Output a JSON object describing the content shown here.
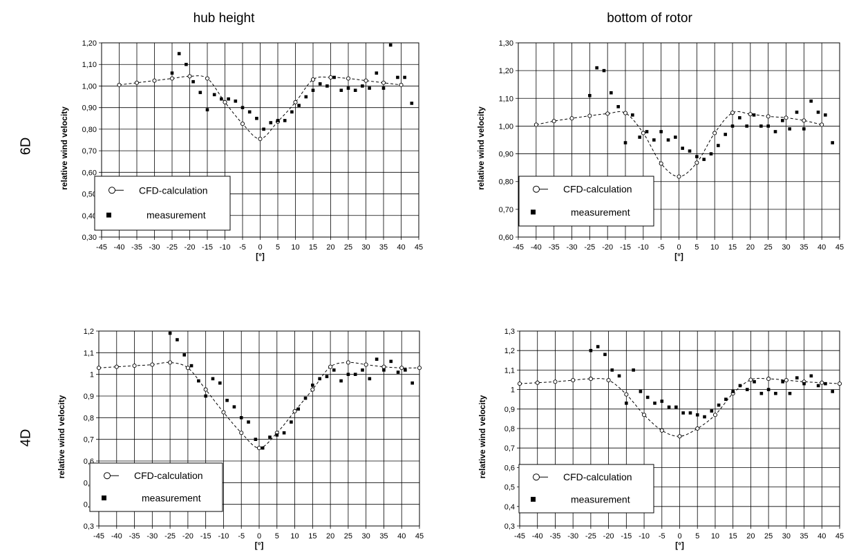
{
  "headers": {
    "col_left": "hub height",
    "col_right": "bottom of rotor",
    "row_top": "6D",
    "row_bottom": "4D"
  },
  "colors": {
    "line": "#000000",
    "grid": "#000000",
    "background": "#ffffff"
  },
  "chart_data": [
    {
      "type": "scatter",
      "xlabel": "[°]",
      "ylabel": "relative wind velocity",
      "xlim": [
        -45,
        45
      ],
      "ylim": [
        0.3,
        1.2
      ],
      "x_ticks": [
        -45,
        -40,
        -35,
        -30,
        -25,
        -20,
        -15,
        -10,
        -5,
        0,
        5,
        10,
        15,
        20,
        25,
        30,
        35,
        40,
        45
      ],
      "y_ticks": [
        "0,30",
        "0,40",
        "0,50",
        "0,60",
        "0,70",
        "0,80",
        "0,90",
        "1,00",
        "1,10",
        "1,20"
      ],
      "grid": true,
      "legend": "bottom-left",
      "series": [
        {
          "name": "CFD-calculation",
          "style": "line-open-circles",
          "x": [
            -40,
            -35,
            -30,
            -25,
            -20,
            -15,
            -10,
            -5,
            0,
            5,
            10,
            15,
            20,
            25,
            30,
            35,
            40
          ],
          "y": [
            1.005,
            1.015,
            1.025,
            1.035,
            1.045,
            1.035,
            0.925,
            0.825,
            0.755,
            0.835,
            0.925,
            1.03,
            1.04,
            1.035,
            1.025,
            1.015,
            1.005
          ]
        },
        {
          "name": "measurement",
          "style": "filled-squares",
          "x": [
            -25,
            -23,
            -21,
            -19,
            -17,
            -15,
            -13,
            -11,
            -9,
            -7,
            -5,
            -3,
            -1,
            1,
            3,
            5,
            7,
            9,
            11,
            13,
            15,
            17,
            19,
            21,
            23,
            25,
            27,
            29,
            31,
            33,
            35,
            37,
            39,
            41,
            43
          ],
          "y": [
            1.06,
            1.15,
            1.1,
            1.02,
            0.97,
            0.89,
            0.96,
            0.94,
            0.94,
            0.93,
            0.9,
            0.88,
            0.85,
            0.8,
            0.83,
            0.84,
            0.84,
            0.88,
            0.91,
            0.95,
            0.98,
            1.01,
            1.0,
            1.04,
            0.98,
            0.99,
            0.98,
            1.0,
            0.99,
            1.06,
            0.99,
            1.19,
            1.04,
            1.04,
            0.92
          ]
        }
      ]
    },
    {
      "type": "scatter",
      "xlabel": "[°]",
      "ylabel": "relative wind velocity",
      "xlim": [
        -45,
        45
      ],
      "ylim": [
        0.6,
        1.3
      ],
      "x_ticks": [
        -45,
        -40,
        -35,
        -30,
        -25,
        -20,
        -15,
        -10,
        -5,
        0,
        5,
        10,
        15,
        20,
        25,
        30,
        35,
        40,
        45
      ],
      "y_ticks": [
        "0,60",
        "0,70",
        "0,80",
        "0,90",
        "1,00",
        "1,10",
        "1,20",
        "1,30"
      ],
      "grid": true,
      "legend": "bottom-left",
      "series": [
        {
          "name": "CFD-calculation",
          "style": "line-open-circles",
          "x": [
            -40,
            -35,
            -30,
            -25,
            -20,
            -15,
            -10,
            -5,
            0,
            5,
            10,
            15,
            20,
            25,
            30,
            35,
            40
          ],
          "y": [
            1.005,
            1.018,
            1.028,
            1.037,
            1.045,
            1.047,
            0.975,
            0.865,
            0.818,
            0.868,
            0.975,
            1.048,
            1.043,
            1.035,
            1.03,
            1.02,
            1.005
          ]
        },
        {
          "name": "measurement",
          "style": "filled-squares",
          "x": [
            -25,
            -23,
            -21,
            -19,
            -17,
            -15,
            -13,
            -11,
            -9,
            -7,
            -5,
            -3,
            -1,
            1,
            3,
            5,
            7,
            9,
            11,
            13,
            15,
            17,
            19,
            21,
            23,
            25,
            27,
            29,
            31,
            33,
            35,
            37,
            39,
            41,
            43
          ],
          "y": [
            1.11,
            1.21,
            1.2,
            1.12,
            1.07,
            0.94,
            1.04,
            0.96,
            0.98,
            0.95,
            0.98,
            0.95,
            0.96,
            0.92,
            0.91,
            0.89,
            0.88,
            0.9,
            0.93,
            0.97,
            1.0,
            1.03,
            1.0,
            1.04,
            1.0,
            1.0,
            0.98,
            1.02,
            0.99,
            1.05,
            0.99,
            1.09,
            1.05,
            1.04,
            0.94
          ]
        }
      ]
    },
    {
      "type": "scatter",
      "xlabel": "[°]",
      "ylabel": "relative wind velocity",
      "xlim": [
        -45,
        45
      ],
      "ylim": [
        0.3,
        1.2
      ],
      "x_ticks": [
        -45,
        -40,
        -35,
        -30,
        -25,
        -20,
        -15,
        -10,
        -5,
        0,
        5,
        10,
        15,
        20,
        25,
        30,
        35,
        40,
        45
      ],
      "y_ticks": [
        "0,3",
        "0,4",
        "0,5",
        "0,6",
        "0,7",
        "0,8",
        "0,9",
        "1",
        "1,1",
        "1,2"
      ],
      "grid": true,
      "legend": "bottom-left",
      "series": [
        {
          "name": "CFD-calculation",
          "style": "line-open-circles",
          "x": [
            -45,
            -40,
            -35,
            -30,
            -25,
            -20,
            -15,
            -10,
            -5,
            0,
            5,
            10,
            15,
            20,
            25,
            30,
            35,
            40,
            45
          ],
          "y": [
            1.03,
            1.035,
            1.04,
            1.045,
            1.055,
            1.03,
            0.93,
            0.825,
            0.73,
            0.66,
            0.73,
            0.83,
            0.93,
            1.035,
            1.055,
            1.045,
            1.035,
            1.03,
            1.03
          ]
        },
        {
          "name": "measurement",
          "style": "filled-squares",
          "x": [
            -25,
            -23,
            -21,
            -19,
            -17,
            -15,
            -13,
            -11,
            -9,
            -7,
            -5,
            -3,
            -1,
            1,
            3,
            5,
            7,
            9,
            11,
            13,
            15,
            17,
            19,
            21,
            23,
            25,
            27,
            29,
            31,
            33,
            35,
            37,
            39,
            41,
            43
          ],
          "y": [
            1.19,
            1.16,
            1.09,
            1.04,
            0.97,
            0.9,
            0.98,
            0.96,
            0.88,
            0.85,
            0.8,
            0.78,
            0.7,
            0.66,
            0.71,
            0.72,
            0.73,
            0.78,
            0.84,
            0.89,
            0.95,
            0.98,
            0.99,
            1.02,
            0.97,
            1.0,
            1.0,
            1.02,
            0.98,
            1.07,
            1.02,
            1.06,
            1.01,
            1.02,
            0.96
          ]
        }
      ]
    },
    {
      "type": "scatter",
      "xlabel": "[°]",
      "ylabel": "relative wind velocity",
      "xlim": [
        -45,
        45
      ],
      "ylim": [
        0.3,
        1.3
      ],
      "x_ticks": [
        -45,
        -40,
        -35,
        -30,
        -25,
        -20,
        -15,
        -10,
        -5,
        0,
        5,
        10,
        15,
        20,
        25,
        30,
        35,
        40,
        45
      ],
      "y_ticks": [
        "0,3",
        "0,4",
        "0,5",
        "0,6",
        "0,7",
        "0,8",
        "0,9",
        "1",
        "1,1",
        "1,2",
        "1,3"
      ],
      "grid": true,
      "legend": "bottom-left",
      "series": [
        {
          "name": "CFD-calculation",
          "style": "line-open-circles",
          "x": [
            -45,
            -40,
            -35,
            -30,
            -25,
            -20,
            -15,
            -10,
            -5,
            0,
            5,
            10,
            15,
            20,
            25,
            30,
            35,
            40,
            45
          ],
          "y": [
            1.03,
            1.035,
            1.04,
            1.048,
            1.055,
            1.048,
            0.975,
            0.87,
            0.79,
            0.76,
            0.8,
            0.87,
            0.98,
            1.05,
            1.055,
            1.048,
            1.04,
            1.035,
            1.03
          ]
        },
        {
          "name": "measurement",
          "style": "filled-squares",
          "x": [
            -25,
            -23,
            -21,
            -19,
            -17,
            -15,
            -13,
            -11,
            -9,
            -7,
            -5,
            -3,
            -1,
            1,
            3,
            5,
            7,
            9,
            11,
            13,
            15,
            17,
            19,
            21,
            23,
            25,
            27,
            29,
            31,
            33,
            35,
            37,
            39,
            41,
            43
          ],
          "y": [
            1.2,
            1.22,
            1.18,
            1.1,
            1.07,
            0.93,
            1.1,
            0.99,
            0.96,
            0.93,
            0.94,
            0.91,
            0.91,
            0.88,
            0.88,
            0.87,
            0.86,
            0.89,
            0.92,
            0.95,
            0.99,
            1.02,
            1.0,
            1.04,
            0.98,
            1.0,
            0.98,
            1.04,
            0.98,
            1.06,
            1.03,
            1.07,
            1.02,
            1.03,
            0.99
          ]
        }
      ]
    }
  ]
}
